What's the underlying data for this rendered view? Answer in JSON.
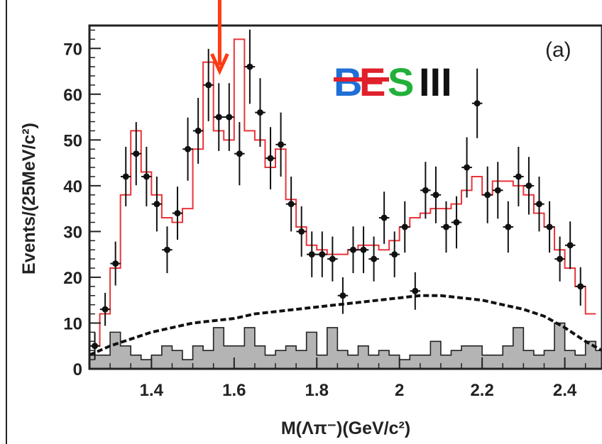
{
  "colors": {
    "fit_line": "#e8343a",
    "background_line": "#111111",
    "background_hist_fill": "#b4b4b4",
    "data_points": "#111111",
    "arrow": "#ff3a12",
    "logo_b": "#1f6fd6",
    "logo_e": "#e0202a",
    "logo_s": "#22b03a",
    "logo_iii": "#111111"
  },
  "panel_label": "(a)",
  "logo": {
    "b": "B",
    "e": "E",
    "s": "S",
    "iii": "III"
  },
  "arrow": {
    "x": 1.565,
    "icon": "down-arrow-icon"
  },
  "chart_data": {
    "type": "line",
    "title": "",
    "xlabel": "M(Λπ⁻)(GeV/c²)",
    "ylabel": "Events/(25MeV/c²)",
    "xlim": [
      1.25,
      2.49
    ],
    "ylim": [
      0,
      75
    ],
    "xticks": [
      1.4,
      1.6,
      1.8,
      2,
      2.2,
      2.4
    ],
    "xtick_labels": [
      "1.4",
      "1.6",
      "1.8",
      "2",
      "2.2",
      "2.4"
    ],
    "yticks": [
      0,
      10,
      20,
      30,
      40,
      50,
      60,
      70
    ],
    "ytick_labels": [
      "0",
      "10",
      "20",
      "30",
      "40",
      "50",
      "60",
      "70"
    ],
    "grid": false,
    "series": [
      {
        "type": "points_with_errors",
        "points": [
          {
            "x": 1.263,
            "y": 5,
            "err": 3
          },
          {
            "x": 1.288,
            "y": 13,
            "err": 3.6
          },
          {
            "x": 1.313,
            "y": 23,
            "err": 4.8
          },
          {
            "x": 1.338,
            "y": 42,
            "err": 6.5
          },
          {
            "x": 1.363,
            "y": 47,
            "err": 6.9
          },
          {
            "x": 1.388,
            "y": 42,
            "err": 6.5
          },
          {
            "x": 1.413,
            "y": 36,
            "err": 6
          },
          {
            "x": 1.438,
            "y": 26,
            "err": 5.1
          },
          {
            "x": 1.463,
            "y": 34,
            "err": 5.8
          },
          {
            "x": 1.488,
            "y": 48,
            "err": 6.9
          },
          {
            "x": 1.513,
            "y": 52,
            "err": 7.2
          },
          {
            "x": 1.538,
            "y": 62,
            "err": 7.9
          },
          {
            "x": 1.563,
            "y": 55,
            "err": 7.4
          },
          {
            "x": 1.588,
            "y": 55,
            "err": 7.4
          },
          {
            "x": 1.613,
            "y": 47,
            "err": 6.9
          },
          {
            "x": 1.638,
            "y": 66,
            "err": 8.1
          },
          {
            "x": 1.663,
            "y": 56,
            "err": 7.5
          },
          {
            "x": 1.688,
            "y": 46,
            "err": 6.8
          },
          {
            "x": 1.713,
            "y": 49,
            "err": 7
          },
          {
            "x": 1.738,
            "y": 36,
            "err": 6
          },
          {
            "x": 1.763,
            "y": 30,
            "err": 5.5
          },
          {
            "x": 1.788,
            "y": 25,
            "err": 5
          },
          {
            "x": 1.813,
            "y": 25,
            "err": 5
          },
          {
            "x": 1.838,
            "y": 24,
            "err": 4.9
          },
          {
            "x": 1.863,
            "y": 16,
            "err": 4
          },
          {
            "x": 1.888,
            "y": 26,
            "err": 5.1
          },
          {
            "x": 1.913,
            "y": 26,
            "err": 5.1
          },
          {
            "x": 1.938,
            "y": 24,
            "err": 4.9
          },
          {
            "x": 1.963,
            "y": 33,
            "err": 5.7
          },
          {
            "x": 1.988,
            "y": 25,
            "err": 5
          },
          {
            "x": 2.013,
            "y": 31,
            "err": 5.6
          },
          {
            "x": 2.038,
            "y": 17,
            "err": 4.1
          },
          {
            "x": 2.063,
            "y": 39,
            "err": 6.2
          },
          {
            "x": 2.088,
            "y": 38,
            "err": 6.2
          },
          {
            "x": 2.113,
            "y": 31,
            "err": 5.6
          },
          {
            "x": 2.138,
            "y": 32,
            "err": 5.7
          },
          {
            "x": 2.163,
            "y": 44,
            "err": 6.6
          },
          {
            "x": 2.188,
            "y": 58,
            "err": 7.6
          },
          {
            "x": 2.213,
            "y": 38,
            "err": 6.2
          },
          {
            "x": 2.238,
            "y": 39,
            "err": 6.2
          },
          {
            "x": 2.263,
            "y": 31,
            "err": 5.6
          },
          {
            "x": 2.288,
            "y": 42,
            "err": 6.5
          },
          {
            "x": 2.313,
            "y": 40,
            "err": 6.3
          },
          {
            "x": 2.338,
            "y": 36,
            "err": 6
          },
          {
            "x": 2.363,
            "y": 31,
            "err": 5.6
          },
          {
            "x": 2.388,
            "y": 24,
            "err": 4.9
          },
          {
            "x": 2.413,
            "y": 27,
            "err": 5.2
          },
          {
            "x": 2.438,
            "y": 18,
            "err": 4.2
          }
        ]
      },
      {
        "type": "step",
        "bin_width": 0.025,
        "x_start": 1.25,
        "values": [
          5,
          12,
          22,
          38,
          52,
          43,
          38,
          33,
          32,
          35,
          48,
          67,
          52,
          50,
          72,
          52,
          50,
          44,
          48,
          37,
          31,
          27,
          26,
          25,
          25,
          26,
          27,
          27,
          26,
          28,
          31,
          33,
          34,
          35,
          35,
          36,
          39,
          42,
          38,
          41,
          41,
          40,
          38,
          34,
          31,
          26,
          22,
          18,
          12
        ]
      },
      {
        "type": "dashed_line",
        "x": [
          1.25,
          1.3,
          1.35,
          1.4,
          1.45,
          1.5,
          1.55,
          1.6,
          1.65,
          1.7,
          1.75,
          1.8,
          1.85,
          1.9,
          1.95,
          2.0,
          2.05,
          2.1,
          2.15,
          2.2,
          2.25,
          2.3,
          2.35,
          2.4,
          2.45,
          2.49
        ],
        "y": [
          3,
          5,
          6.5,
          8,
          9,
          10,
          10.5,
          11,
          12,
          12.5,
          13,
          13.5,
          14,
          14.5,
          15,
          15.5,
          16,
          16,
          15.5,
          15,
          14,
          13,
          11.5,
          9,
          6,
          4
        ]
      },
      {
        "type": "filled_histogram",
        "bin_width": 0.025,
        "x_start": 1.25,
        "values": [
          3,
          3,
          8,
          5,
          3,
          2,
          3,
          5,
          4,
          2,
          5,
          4,
          9,
          5,
          5,
          9,
          5,
          3,
          4,
          5,
          4,
          8,
          3,
          9,
          4,
          3,
          5,
          3,
          4,
          3,
          2,
          3,
          3,
          6,
          3,
          4,
          5,
          5,
          3,
          3,
          5,
          9,
          4,
          3,
          4,
          10,
          4,
          3,
          6,
          4
        ]
      }
    ]
  }
}
